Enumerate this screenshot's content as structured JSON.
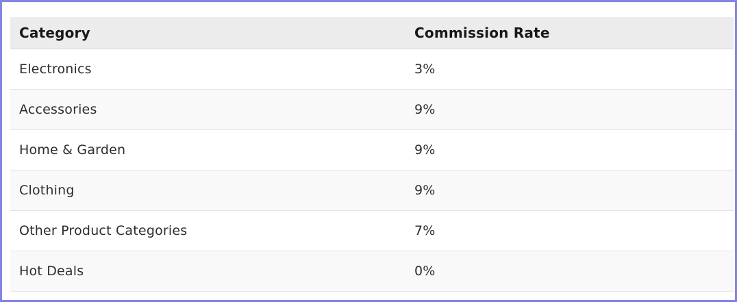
{
  "highlight": {
    "border_color": "#8484e4",
    "meaning": "element-highlight-box"
  },
  "table": {
    "columns": [
      {
        "label": "Category"
      },
      {
        "label": "Commission Rate"
      }
    ],
    "rows": [
      {
        "category": "Electronics",
        "rate": "3%"
      },
      {
        "category": "Accessories",
        "rate": "9%"
      },
      {
        "category": "Home & Garden",
        "rate": "9%"
      },
      {
        "category": "Clothing",
        "rate": "9%"
      },
      {
        "category": "Other Product Categories",
        "rate": "7%"
      },
      {
        "category": "Hot Deals",
        "rate": "0%"
      }
    ]
  },
  "colors": {
    "header_background": "#ececec",
    "striped_row_background": "#f9f9f9",
    "row_separator": "#e4e4e4",
    "header_text": "#181818",
    "body_text": "#2d2d2d"
  },
  "chart_data": {
    "type": "table",
    "columns": [
      "Category",
      "Commission Rate"
    ],
    "rows": [
      [
        "Electronics",
        "3%"
      ],
      [
        "Accessories",
        "9%"
      ],
      [
        "Home & Garden",
        "9%"
      ],
      [
        "Clothing",
        "9%"
      ],
      [
        "Other Product Categories",
        "7%"
      ],
      [
        "Hot Deals",
        "0%"
      ]
    ]
  }
}
